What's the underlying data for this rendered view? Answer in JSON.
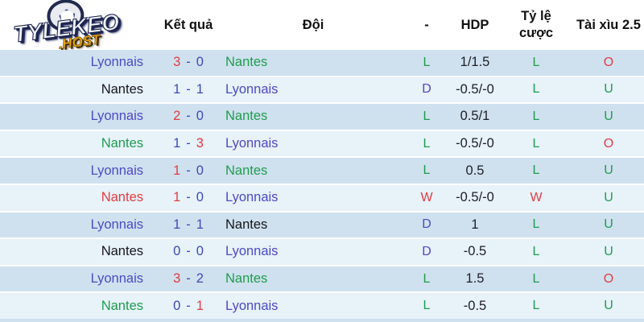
{
  "logo": {
    "title": "TYLEKEO",
    "subtitle": ".HOST"
  },
  "header": {
    "col_result": "Kết quả",
    "col_team": "Đội",
    "col_dash": "-",
    "col_hdp": "HDP",
    "col_odds": "Tỷ lệ cược",
    "col_ou": "Tài xìu 2.5"
  },
  "score_separator": "-",
  "colors": {
    "purple": "#4e49c6",
    "blue": "#3f49b8",
    "green": "#1f9d4d",
    "red": "#e23c42",
    "black": "#16161a",
    "row_dark_bg": "#cfe1ef",
    "row_light_bg": "#e7f2f9"
  },
  "rows": [
    {
      "home": "Lyonnais",
      "home_color": "purple",
      "score_home": "3",
      "score_home_color": "red",
      "score_away": "0",
      "score_away_color": "blue",
      "away": "Nantes",
      "away_color": "green",
      "result": "L",
      "result_color": "green",
      "hdp": "1/1.5",
      "odds": "L",
      "odds_color": "green",
      "ou": "O",
      "ou_color": "red"
    },
    {
      "home": "Nantes",
      "home_color": "black",
      "score_home": "1",
      "score_home_color": "blue",
      "score_away": "1",
      "score_away_color": "blue",
      "away": "Lyonnais",
      "away_color": "purple",
      "result": "D",
      "result_color": "purple",
      "hdp": "-0.5/-0",
      "odds": "L",
      "odds_color": "green",
      "ou": "U",
      "ou_color": "green"
    },
    {
      "home": "Lyonnais",
      "home_color": "purple",
      "score_home": "2",
      "score_home_color": "red",
      "score_away": "0",
      "score_away_color": "blue",
      "away": "Nantes",
      "away_color": "green",
      "result": "L",
      "result_color": "green",
      "hdp": "0.5/1",
      "odds": "L",
      "odds_color": "green",
      "ou": "U",
      "ou_color": "green"
    },
    {
      "home": "Nantes",
      "home_color": "green",
      "score_home": "1",
      "score_home_color": "blue",
      "score_away": "3",
      "score_away_color": "red",
      "away": "Lyonnais",
      "away_color": "purple",
      "result": "L",
      "result_color": "green",
      "hdp": "-0.5/-0",
      "odds": "L",
      "odds_color": "green",
      "ou": "O",
      "ou_color": "red"
    },
    {
      "home": "Lyonnais",
      "home_color": "purple",
      "score_home": "1",
      "score_home_color": "red",
      "score_away": "0",
      "score_away_color": "blue",
      "away": "Nantes",
      "away_color": "green",
      "result": "L",
      "result_color": "green",
      "hdp": "0.5",
      "odds": "L",
      "odds_color": "green",
      "ou": "U",
      "ou_color": "green"
    },
    {
      "home": "Nantes",
      "home_color": "red",
      "score_home": "1",
      "score_home_color": "red",
      "score_away": "0",
      "score_away_color": "blue",
      "away": "Lyonnais",
      "away_color": "purple",
      "result": "W",
      "result_color": "red",
      "hdp": "-0.5/-0",
      "odds": "W",
      "odds_color": "red",
      "ou": "U",
      "ou_color": "green"
    },
    {
      "home": "Lyonnais",
      "home_color": "purple",
      "score_home": "1",
      "score_home_color": "blue",
      "score_away": "1",
      "score_away_color": "blue",
      "away": "Nantes",
      "away_color": "black",
      "result": "D",
      "result_color": "purple",
      "hdp": "1",
      "odds": "L",
      "odds_color": "green",
      "ou": "U",
      "ou_color": "green"
    },
    {
      "home": "Nantes",
      "home_color": "black",
      "score_home": "0",
      "score_home_color": "blue",
      "score_away": "0",
      "score_away_color": "blue",
      "away": "Lyonnais",
      "away_color": "purple",
      "result": "D",
      "result_color": "purple",
      "hdp": "-0.5",
      "odds": "L",
      "odds_color": "green",
      "ou": "U",
      "ou_color": "green"
    },
    {
      "home": "Lyonnais",
      "home_color": "purple",
      "score_home": "3",
      "score_home_color": "red",
      "score_away": "2",
      "score_away_color": "blue",
      "away": "Nantes",
      "away_color": "green",
      "result": "L",
      "result_color": "green",
      "hdp": "1.5",
      "odds": "L",
      "odds_color": "green",
      "ou": "O",
      "ou_color": "red"
    },
    {
      "home": "Nantes",
      "home_color": "green",
      "score_home": "0",
      "score_home_color": "blue",
      "score_away": "1",
      "score_away_color": "red",
      "away": "Lyonnais",
      "away_color": "purple",
      "result": "L",
      "result_color": "green",
      "hdp": "-0.5",
      "odds": "L",
      "odds_color": "green",
      "ou": "U",
      "ou_color": "green"
    }
  ]
}
